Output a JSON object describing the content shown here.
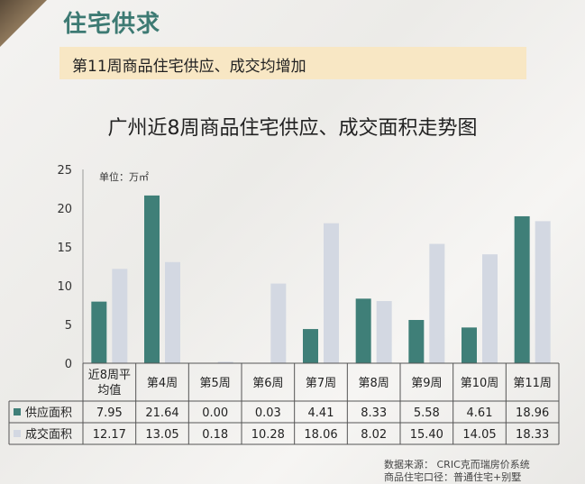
{
  "header": {
    "section_title": "住宅供求",
    "subtitle": "第11周商品住宅供应、成交均增加"
  },
  "chart_data": {
    "type": "bar",
    "title": "广州近8周商品住宅供应、成交面积走势图",
    "unit": "单位：万㎡",
    "categories": [
      "近8周平均值",
      "第4周",
      "第5周",
      "第6周",
      "第7周",
      "第8周",
      "第9周",
      "第10周",
      "第11周"
    ],
    "category_lines": [
      [
        "近8周平",
        "均值"
      ],
      [
        "第4周"
      ],
      [
        "第5周"
      ],
      [
        "第6周"
      ],
      [
        "第7周"
      ],
      [
        "第8周"
      ],
      [
        "第9周"
      ],
      [
        "第10周"
      ],
      [
        "第11周"
      ]
    ],
    "series": [
      {
        "name": "供应面积",
        "color": "#3f7f78",
        "values": [
          7.95,
          21.64,
          0.0,
          0.03,
          4.41,
          8.33,
          5.58,
          4.61,
          18.96
        ],
        "labels": [
          "7.95",
          "21.64",
          "0.00",
          "0.03",
          "4.41",
          "8.33",
          "5.58",
          "4.61",
          "18.96"
        ]
      },
      {
        "name": "成交面积",
        "color": "#d3d8e2",
        "values": [
          12.17,
          13.05,
          0.18,
          10.28,
          18.06,
          8.02,
          15.4,
          14.05,
          18.33
        ],
        "labels": [
          "12.17",
          "13.05",
          "0.18",
          "10.28",
          "18.06",
          "8.02",
          "15.40",
          "14.05",
          "18.33"
        ]
      }
    ],
    "ylim": [
      0,
      25
    ],
    "yticks": [
      0,
      5,
      10,
      15,
      20,
      25
    ],
    "legend": "table-bottom"
  },
  "source": {
    "line1": "数据来源：  CRIC克而瑞房价系统",
    "line2": "商品住宅口径：普通住宅+别墅"
  }
}
